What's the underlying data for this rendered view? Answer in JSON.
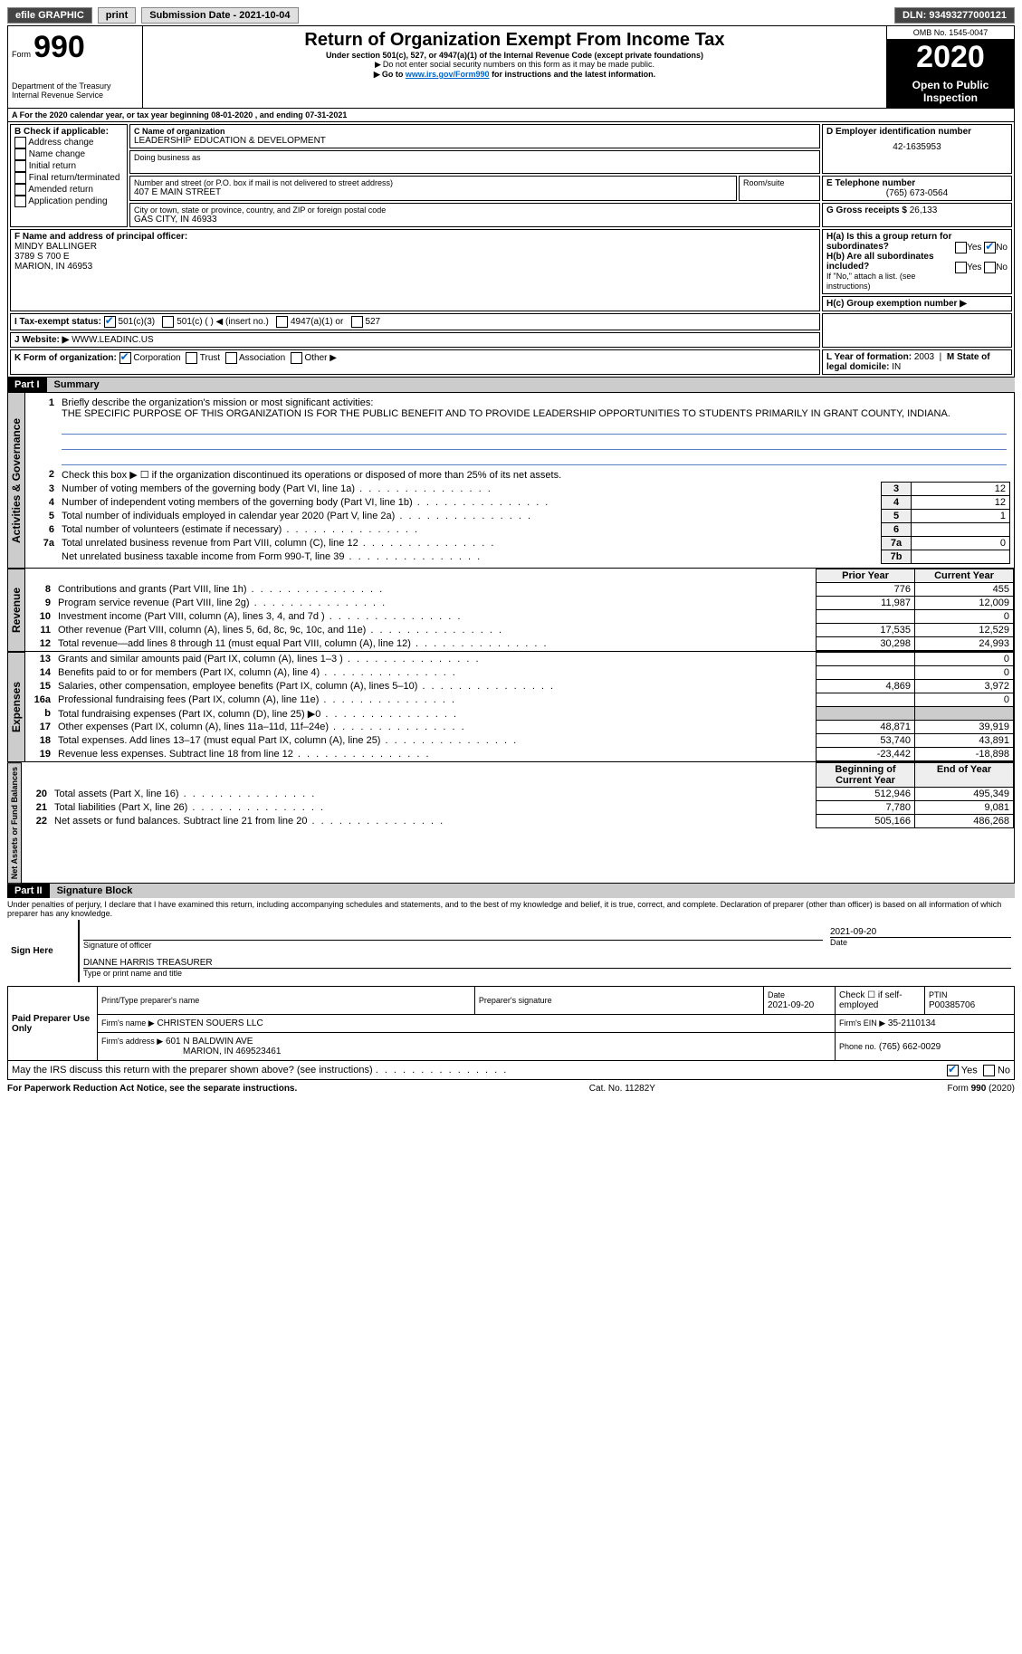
{
  "topbar": {
    "efile": "efile GRAPHIC",
    "print": "print",
    "submission_label": "Submission Date - 2021-10-04",
    "dln_label": "DLN: 93493277000121"
  },
  "header": {
    "form_prefix": "Form",
    "form_number": "990",
    "title": "Return of Organization Exempt From Income Tax",
    "subtitle1": "Under section 501(c), 527, or 4947(a)(1) of the Internal Revenue Code (except private foundations)",
    "subtitle2": "Do not enter social security numbers on this form as it may be made public.",
    "subtitle3_pre": "Go to ",
    "subtitle3_link": "www.irs.gov/Form990",
    "subtitle3_post": " for instructions and the latest information.",
    "dept": "Department of the Treasury\nInternal Revenue Service",
    "omb": "OMB No. 1545-0047",
    "year": "2020",
    "open": "Open to Public Inspection"
  },
  "period": {
    "text": "For the 2020 calendar year, or tax year beginning 08-01-2020    , and ending 07-31-2021"
  },
  "boxB": {
    "label": "B Check if applicable:",
    "items": [
      "Address change",
      "Name change",
      "Initial return",
      "Final return/terminated",
      "Amended return",
      "Application pending"
    ]
  },
  "boxC": {
    "name_label": "C Name of organization",
    "name": "LEADERSHIP EDUCATION & DEVELOPMENT",
    "dba_label": "Doing business as",
    "street_label": "Number and street (or P.O. box if mail is not delivered to street address)",
    "street": "407 E MAIN STREET",
    "room_label": "Room/suite",
    "city_label": "City or town, state or province, country, and ZIP or foreign postal code",
    "city": "GAS CITY, IN  46933"
  },
  "boxD": {
    "label": "D Employer identification number",
    "value": "42-1635953"
  },
  "boxE": {
    "label": "E Telephone number",
    "value": "(765) 673-0564"
  },
  "boxG": {
    "label": "G Gross receipts $",
    "value": "26,133"
  },
  "boxF": {
    "label": "F  Name and address of principal officer:",
    "name": "MINDY BALLINGER",
    "addr1": "3789 S 700 E",
    "addr2": "MARION, IN  46953"
  },
  "boxH": {
    "a_label": "H(a)  Is this a group return for subordinates?",
    "b_label": "H(b)  Are all subordinates included?",
    "b_note": "If \"No,\" attach a list. (see instructions)",
    "c_label": "H(c)  Group exemption number ▶",
    "yes": "Yes",
    "no": "No"
  },
  "boxI": {
    "label": "I   Tax-exempt status:",
    "opts": [
      "501(c)(3)",
      "501(c) (  )  ◀ (insert no.)",
      "4947(a)(1) or",
      "527"
    ]
  },
  "boxJ": {
    "label": "J   Website: ▶ ",
    "value": "WWW.LEADINC.US"
  },
  "boxK": {
    "label": "K Form of organization:",
    "opts": [
      "Corporation",
      "Trust",
      "Association",
      "Other ▶"
    ]
  },
  "boxL": {
    "label": "L Year of formation: ",
    "value": "2003"
  },
  "boxM": {
    "label": "M State of legal domicile: ",
    "value": "IN"
  },
  "part1": {
    "bar": "Part I",
    "title": "Summary",
    "line1_label": "Briefly describe the organization's mission or most significant activities:",
    "line1_text": "THE SPECIFIC PURPOSE OF THIS ORGANIZATION IS FOR THE PUBLIC BENEFIT AND TO PROVIDE LEADERSHIP OPPORTUNITIES TO STUDENTS PRIMARILY IN GRANT COUNTY, INDIANA.",
    "line2": "Check this box ▶ ☐  if the organization discontinued its operations or disposed of more than 25% of its net assets.",
    "sideA": "Activities & Governance",
    "sideR": "Revenue",
    "sideE": "Expenses",
    "sideN": "Net Assets or Fund Balances",
    "rows_gov": [
      {
        "n": "3",
        "t": "Number of voting members of the governing body (Part VI, line 1a)",
        "b": "3",
        "v": "12"
      },
      {
        "n": "4",
        "t": "Number of independent voting members of the governing body (Part VI, line 1b)",
        "b": "4",
        "v": "12"
      },
      {
        "n": "5",
        "t": "Total number of individuals employed in calendar year 2020 (Part V, line 2a)",
        "b": "5",
        "v": "1"
      },
      {
        "n": "6",
        "t": "Total number of volunteers (estimate if necessary)",
        "b": "6",
        "v": ""
      },
      {
        "n": "7a",
        "t": "Total unrelated business revenue from Part VIII, column (C), line 12",
        "b": "7a",
        "v": "0"
      },
      {
        "n": "",
        "t": "Net unrelated business taxable income from Form 990-T, line 39",
        "b": "7b",
        "v": ""
      }
    ],
    "col_prior": "Prior Year",
    "col_current": "Current Year",
    "rows_rev": [
      {
        "n": "8",
        "t": "Contributions and grants (Part VIII, line 1h)",
        "p": "776",
        "c": "455"
      },
      {
        "n": "9",
        "t": "Program service revenue (Part VIII, line 2g)",
        "p": "11,987",
        "c": "12,009"
      },
      {
        "n": "10",
        "t": "Investment income (Part VIII, column (A), lines 3, 4, and 7d )",
        "p": "",
        "c": "0"
      },
      {
        "n": "11",
        "t": "Other revenue (Part VIII, column (A), lines 5, 6d, 8c, 9c, 10c, and 11e)",
        "p": "17,535",
        "c": "12,529"
      },
      {
        "n": "12",
        "t": "Total revenue—add lines 8 through 11 (must equal Part VIII, column (A), line 12)",
        "p": "30,298",
        "c": "24,993"
      }
    ],
    "rows_exp": [
      {
        "n": "13",
        "t": "Grants and similar amounts paid (Part IX, column (A), lines 1–3 )",
        "p": "",
        "c": "0"
      },
      {
        "n": "14",
        "t": "Benefits paid to or for members (Part IX, column (A), line 4)",
        "p": "",
        "c": "0"
      },
      {
        "n": "15",
        "t": "Salaries, other compensation, employee benefits (Part IX, column (A), lines 5–10)",
        "p": "4,869",
        "c": "3,972"
      },
      {
        "n": "16a",
        "t": "Professional fundraising fees (Part IX, column (A), line 11e)",
        "p": "",
        "c": "0"
      },
      {
        "n": "b",
        "t": "Total fundraising expenses (Part IX, column (D), line 25) ▶0",
        "p": "shade",
        "c": "shade"
      },
      {
        "n": "17",
        "t": "Other expenses (Part IX, column (A), lines 11a–11d, 11f–24e)",
        "p": "48,871",
        "c": "39,919"
      },
      {
        "n": "18",
        "t": "Total expenses. Add lines 13–17 (must equal Part IX, column (A), line 25)",
        "p": "53,740",
        "c": "43,891"
      },
      {
        "n": "19",
        "t": "Revenue less expenses. Subtract line 18 from line 12",
        "p": "-23,442",
        "c": "-18,898"
      }
    ],
    "col_beg": "Beginning of Current Year",
    "col_end": "End of Year",
    "rows_net": [
      {
        "n": "20",
        "t": "Total assets (Part X, line 16)",
        "p": "512,946",
        "c": "495,349"
      },
      {
        "n": "21",
        "t": "Total liabilities (Part X, line 26)",
        "p": "7,780",
        "c": "9,081"
      },
      {
        "n": "22",
        "t": "Net assets or fund balances. Subtract line 21 from line 20",
        "p": "505,166",
        "c": "486,268"
      }
    ]
  },
  "part2": {
    "bar": "Part II",
    "title": "Signature Block",
    "decl": "Under penalties of perjury, I declare that I have examined this return, including accompanying schedules and statements, and to the best of my knowledge and belief, it is true, correct, and complete. Declaration of preparer (other than officer) is based on all information of which preparer has any knowledge.",
    "sign_here": "Sign Here",
    "sig_officer": "Signature of officer",
    "date_label": "Date",
    "sig_date": "2021-09-20",
    "name_title": "DIANNE HARRIS  TREASURER",
    "name_title_label": "Type or print name and title",
    "paid": "Paid Preparer Use Only",
    "p_name_label": "Print/Type preparer's name",
    "p_sig_label": "Preparer's signature",
    "p_date_label": "Date",
    "p_date": "2021-09-20",
    "p_check": "Check ☐ if self-employed",
    "ptin_label": "PTIN",
    "ptin": "P00385706",
    "firm_name_label": "Firm's name     ▶",
    "firm_name": "CHRISTEN SOUERS LLC",
    "firm_ein_label": "Firm's EIN ▶",
    "firm_ein": "35-2110134",
    "firm_addr_label": "Firm's address ▶",
    "firm_addr1": "601 N BALDWIN AVE",
    "firm_addr2": "MARION, IN  469523461",
    "phone_label": "Phone no.",
    "phone": "(765) 662-0029",
    "discuss": "May the IRS discuss this return with the preparer shown above? (see instructions)"
  },
  "footer": {
    "left": "For Paperwork Reduction Act Notice, see the separate instructions.",
    "mid": "Cat. No. 11282Y",
    "right": "Form 990 (2020)"
  }
}
